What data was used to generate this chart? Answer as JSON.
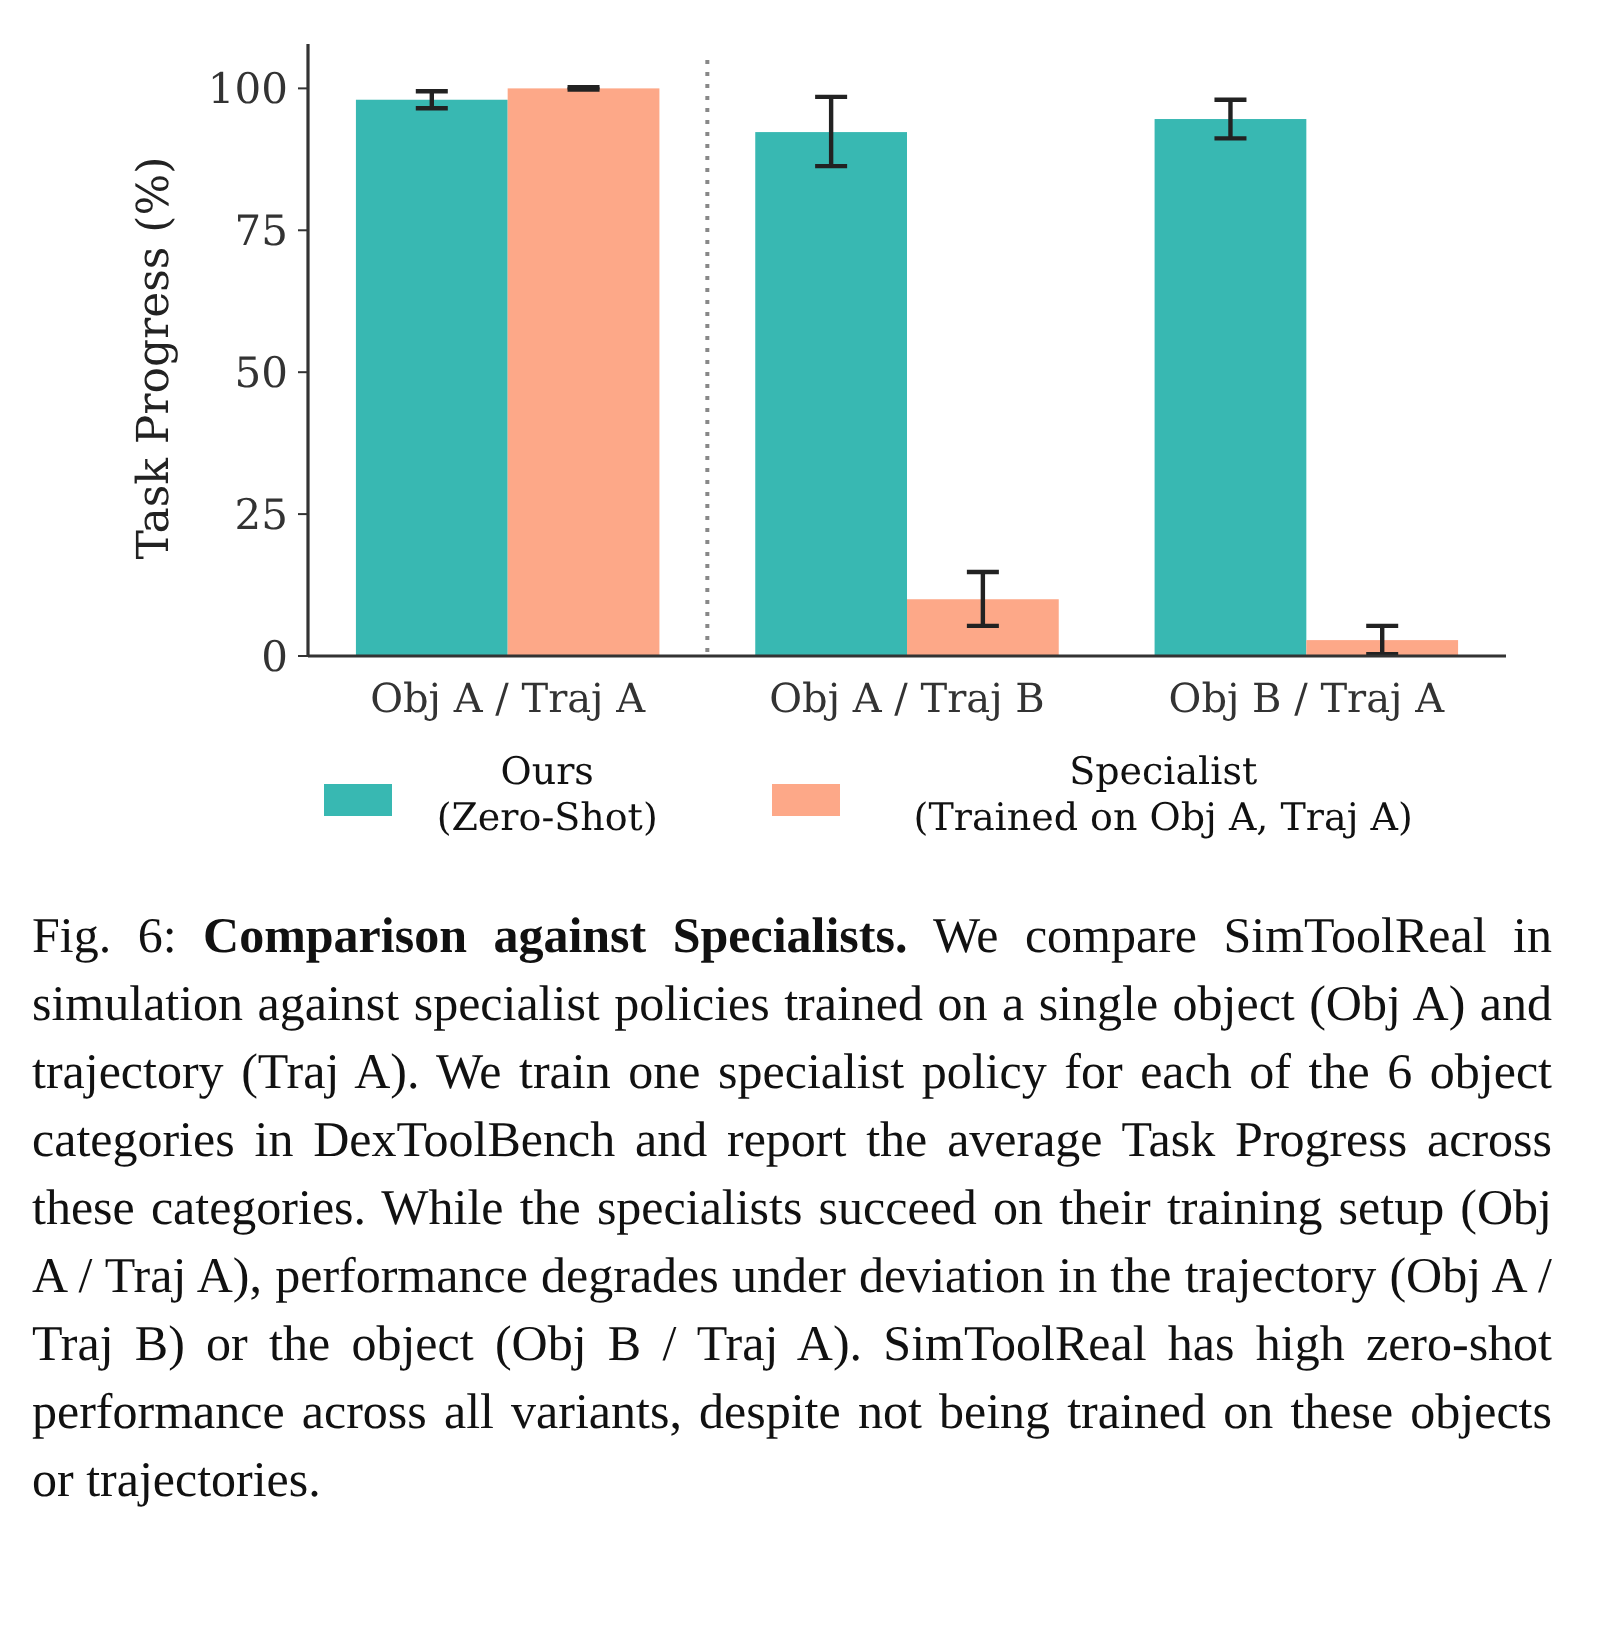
{
  "chart_data": {
    "type": "bar",
    "ylabel": "Task Progress (%)",
    "categories": [
      "Obj A / Traj A",
      "Obj A / Traj B",
      "Obj B / Traj A"
    ],
    "series": [
      {
        "name": "Ours\n(Zero-Shot)",
        "color": "#38b8b2",
        "values": [
          98,
          92.3,
          94.6
        ],
        "errors": [
          [
            96.5,
            99.5
          ],
          [
            86.3,
            98.5
          ],
          [
            91.2,
            98
          ]
        ]
      },
      {
        "name": "Specialist\n(Trained on Obj A, Traj A)",
        "color": "#fda888",
        "values": [
          100,
          10,
          2.8
        ],
        "errors": [
          [
            99.8,
            100.2
          ],
          [
            5.3,
            14.8
          ],
          [
            0.3,
            5.3
          ]
        ]
      }
    ],
    "ylim": [
      0,
      105
    ],
    "yticks": [
      0,
      25,
      50,
      75,
      100
    ],
    "grid": false,
    "legend": "bottom",
    "annotations": [
      "Fig. 6:",
      "Comparison against Specialists.",
      "We compare SimToolReal in simulation against specialist policies trained on a single object (Obj A) and trajectory (Traj A). We train one specialist policy for each of the 6 object categories in DexToolBench and report the average Task Progress across these categories. While the specialists succeed on their training setup (Obj A / Traj A), performance degrades under deviation in the trajectory (Obj A / Traj B) or the object (Obj B / Traj A). SimToolReal has high zero-shot performance across all variants, despite not being trained on these objects or trajectories."
    ]
  }
}
